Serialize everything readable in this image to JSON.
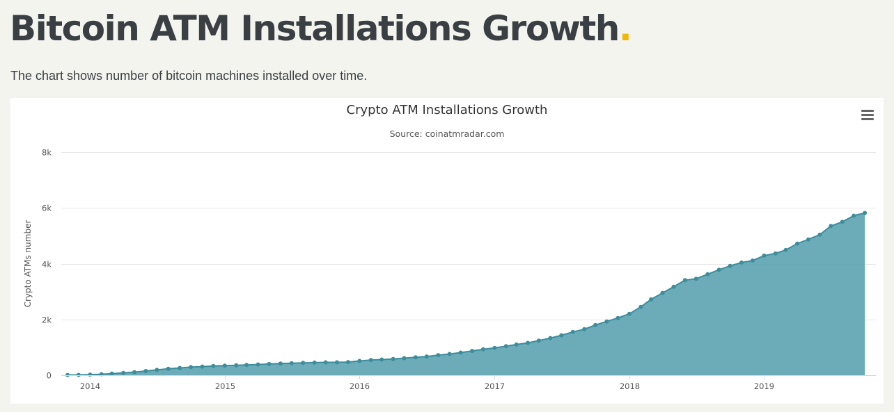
{
  "page": {
    "title": "Bitcoin ATM Installations Growth",
    "title_dot": ".",
    "subtitle": "The chart shows number of bitcoin machines installed over time."
  },
  "chart_menu": {
    "icon": "hamburger-menu-icon"
  },
  "colors": {
    "accent_dot": "#f2b705",
    "series_line": "#3d8d9c",
    "series_fill": "#5ea5b2"
  },
  "chart_data": {
    "type": "area",
    "title": "Crypto ATM Installations Growth",
    "subtitle": "Source: coinatmradar.com",
    "ylabel": "Crypto ATMs number",
    "xlabel": "",
    "ylim": [
      0,
      8000
    ],
    "yticks": [
      0,
      2000,
      4000,
      6000,
      8000
    ],
    "ytick_labels": [
      "0",
      "2k",
      "4k",
      "6k",
      "8k"
    ],
    "xlim": [
      "2013-10-15",
      "2019-10-31"
    ],
    "xticks": [
      "2014",
      "2015",
      "2016",
      "2017",
      "2018",
      "2019"
    ],
    "grid": true,
    "legend": false,
    "marker": true,
    "series": [
      {
        "x": [
          "2013-11",
          "2013-12",
          "2014-01",
          "2014-02",
          "2014-03",
          "2014-04",
          "2014-05",
          "2014-06",
          "2014-07",
          "2014-08",
          "2014-09",
          "2014-10",
          "2014-11",
          "2014-12",
          "2015-01",
          "2015-02",
          "2015-03",
          "2015-04",
          "2015-05",
          "2015-06",
          "2015-07",
          "2015-08",
          "2015-09",
          "2015-10",
          "2015-11",
          "2015-12",
          "2016-01",
          "2016-02",
          "2016-03",
          "2016-04",
          "2016-05",
          "2016-06",
          "2016-07",
          "2016-08",
          "2016-09",
          "2016-10",
          "2016-11",
          "2016-12",
          "2017-01",
          "2017-02",
          "2017-03",
          "2017-04",
          "2017-05",
          "2017-06",
          "2017-07",
          "2017-08",
          "2017-09",
          "2017-10",
          "2017-11",
          "2017-12",
          "2018-01",
          "2018-02",
          "2018-03",
          "2018-04",
          "2018-05",
          "2018-06",
          "2018-07",
          "2018-08",
          "2018-09",
          "2018-10",
          "2018-11",
          "2018-12",
          "2019-01",
          "2019-02",
          "2019-03",
          "2019-04",
          "2019-05",
          "2019-06",
          "2019-07",
          "2019-08",
          "2019-09",
          "2019-10"
        ],
        "y": [
          5,
          10,
          20,
          35,
          55,
          80,
          110,
          150,
          190,
          230,
          260,
          290,
          310,
          330,
          345,
          355,
          370,
          385,
          400,
          415,
          430,
          440,
          450,
          460,
          460,
          470,
          510,
          540,
          560,
          580,
          610,
          640,
          670,
          720,
          760,
          810,
          870,
          930,
          980,
          1040,
          1100,
          1160,
          1240,
          1330,
          1430,
          1550,
          1650,
          1800,
          1930,
          2050,
          2200,
          2450,
          2720,
          2950,
          3170,
          3410,
          3460,
          3620,
          3780,
          3920,
          4040,
          4110,
          4290,
          4370,
          4490,
          4720,
          4870,
          5040,
          5350,
          5500,
          5720,
          5820
        ]
      }
    ]
  }
}
